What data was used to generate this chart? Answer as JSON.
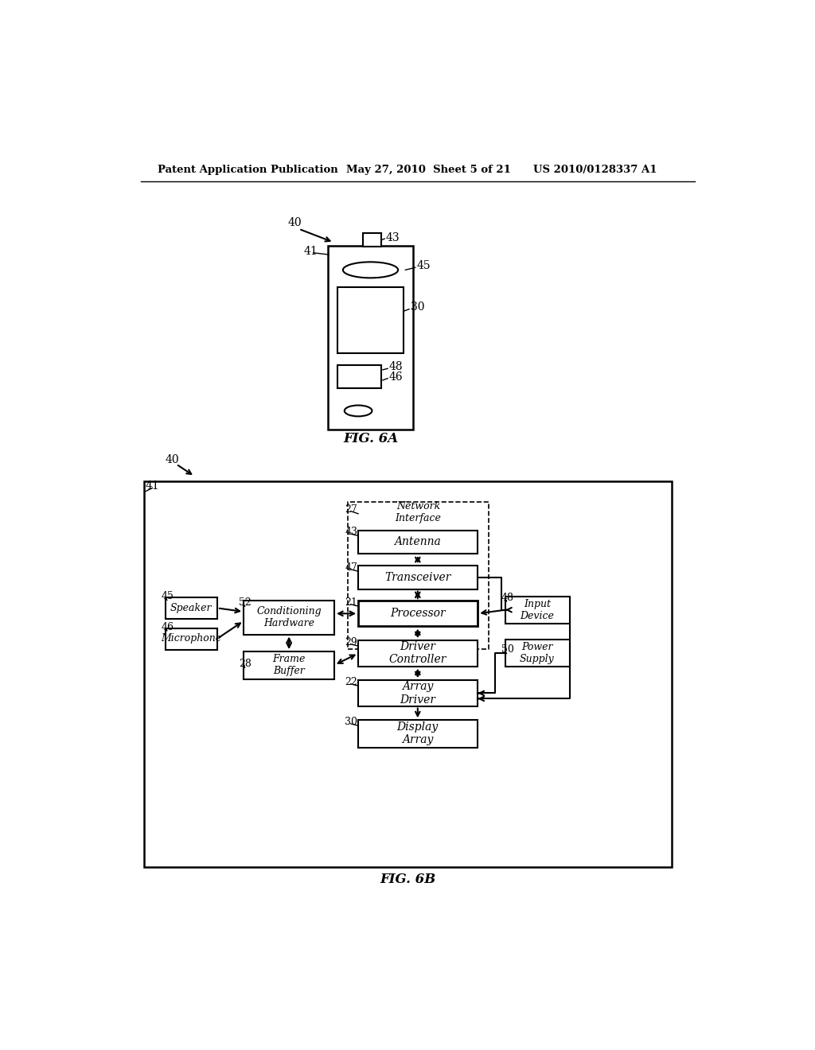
{
  "bg_color": "#ffffff",
  "header_left": "Patent Application Publication",
  "header_mid": "May 27, 2010  Sheet 5 of 21",
  "header_right": "US 2010/0128337 A1",
  "fig6a_label": "FIG. 6A",
  "fig6b_label": "FIG. 6B",
  "network_interface": "Network\nInterface",
  "antenna": "Antenna",
  "transceiver": "Transceiver",
  "processor": "Processor",
  "driver_controller": "Driver\nController",
  "array_driver": "Array\nDriver",
  "display_array": "Display\nArray",
  "conditioning_hardware": "Conditioning\nHardware",
  "frame_buffer": "Frame\nBuffer",
  "speaker": "Speaker",
  "microphone": "Microphone",
  "input_device": "Input\nDevice",
  "power_supply": "Power\nSupply"
}
